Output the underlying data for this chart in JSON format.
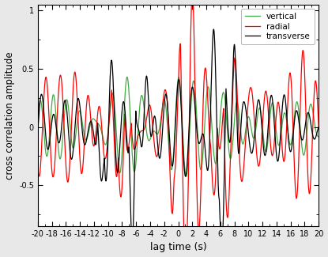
{
  "xlabel": "lag time (s)",
  "ylabel": "cross correlation amplitude",
  "xlim": [
    -20,
    20
  ],
  "ylim": [
    -0.85,
    1.05
  ],
  "yticks": [
    -0.5,
    0,
    0.5,
    1
  ],
  "xticks": [
    -20,
    -18,
    -16,
    -14,
    -12,
    -10,
    -8,
    -6,
    -4,
    -2,
    0,
    2,
    4,
    6,
    8,
    10,
    12,
    14,
    16,
    18,
    20
  ],
  "legend_labels": [
    "transverse",
    "radial",
    "vertical"
  ],
  "legend_colors": [
    "black",
    "red",
    "#44aa44"
  ],
  "line_width": 0.9,
  "background_color": "#e8e8e8",
  "axes_background": "#ffffff",
  "fig_width": 4.15,
  "fig_height": 3.25,
  "dpi": 100
}
